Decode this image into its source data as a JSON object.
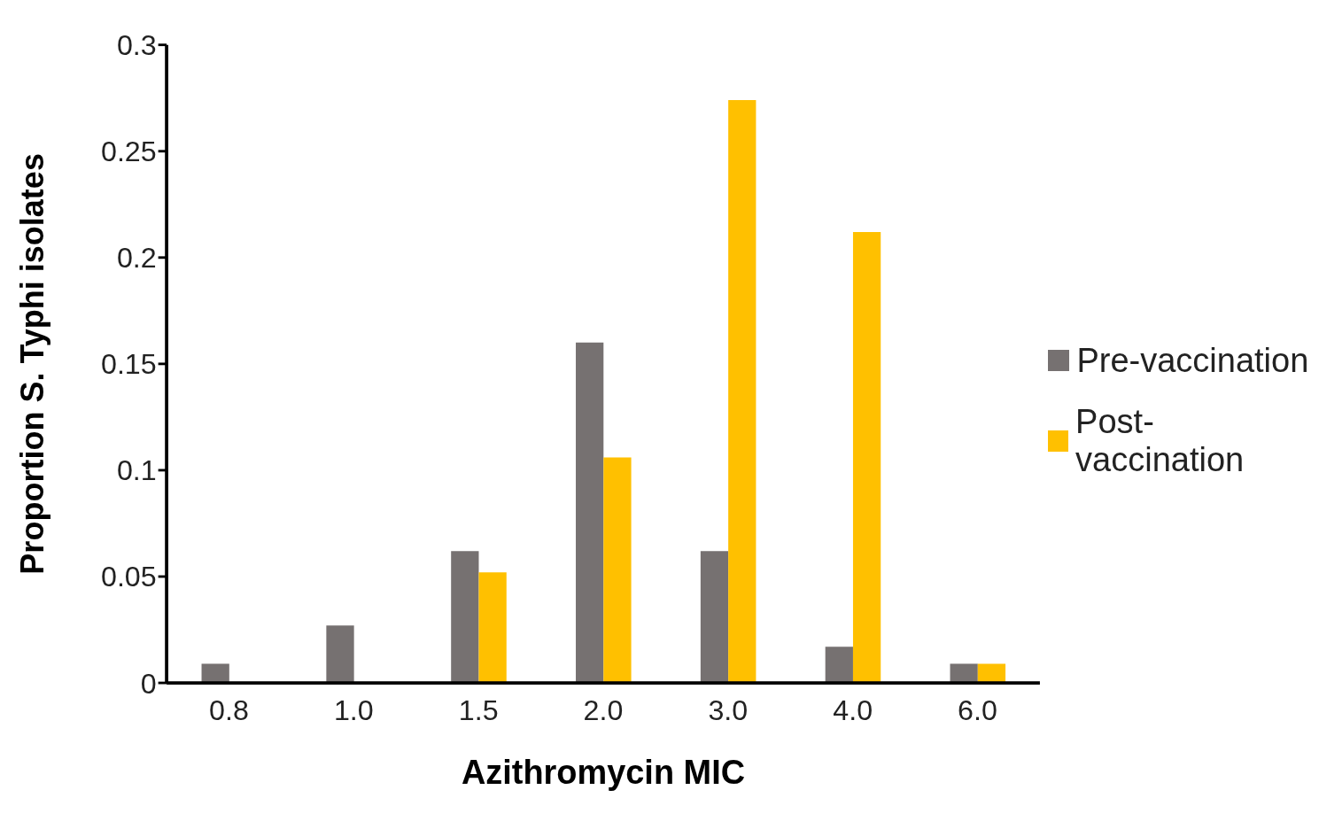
{
  "chart_data": {
    "type": "bar",
    "xlabel": "Azithromycin MIC",
    "ylabel": "Proportion S. Typhi isolates",
    "categories": [
      "0.8",
      "1.0",
      "1.5",
      "2.0",
      "3.0",
      "4.0",
      "6.0"
    ],
    "series": [
      {
        "name": "Pre-vaccination",
        "color": "#767171",
        "values": [
          0.009,
          0.027,
          0.062,
          0.16,
          0.062,
          0.017,
          0.009
        ]
      },
      {
        "name": "Post-vaccination",
        "color": "#ffc000",
        "values": [
          0,
          0,
          0.052,
          0.106,
          0.274,
          0.212,
          0.009
        ]
      }
    ],
    "ylim": [
      0,
      0.3
    ],
    "yticks": [
      0,
      0.05,
      0.1,
      0.15,
      0.2,
      0.25,
      0.3
    ],
    "grid": false,
    "legend": "right"
  }
}
